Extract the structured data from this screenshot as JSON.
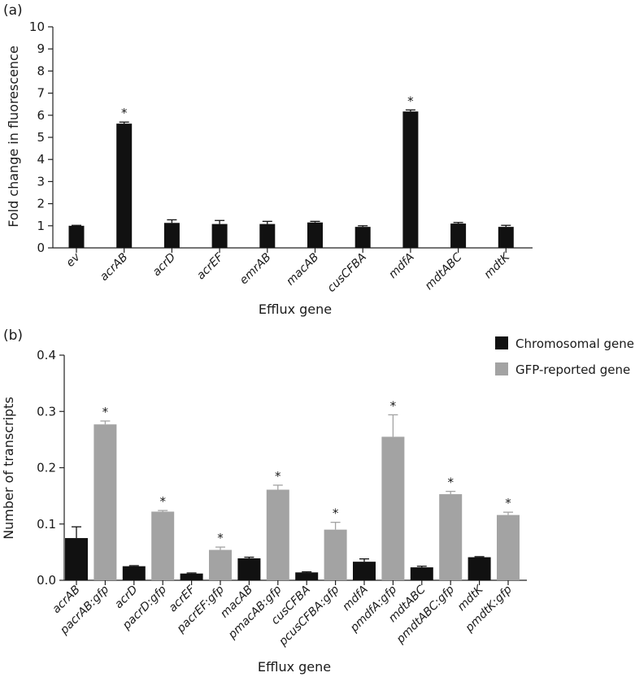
{
  "chart_data": [
    {
      "panel": "(a)",
      "type": "bar",
      "xlabel": "Efflux gene",
      "ylabel": "Fold change in fluorescence",
      "ylim": [
        0,
        10
      ],
      "yticks": [
        "0",
        "1",
        "2",
        "3",
        "4",
        "5",
        "6",
        "7",
        "8",
        "9",
        "10"
      ],
      "categories": [
        "ev",
        "acrAB",
        "acrD",
        "acrEF",
        "emrAB",
        "macAB",
        "cusCFBA",
        "mdfA",
        "mdtABC",
        "mdtK"
      ],
      "values": [
        1.0,
        5.62,
        1.13,
        1.08,
        1.08,
        1.15,
        0.95,
        6.17,
        1.1,
        0.95
      ],
      "errors": [
        0.02,
        0.07,
        0.14,
        0.16,
        0.12,
        0.05,
        0.05,
        0.07,
        0.05,
        0.07
      ],
      "significant": [
        false,
        true,
        false,
        false,
        false,
        false,
        false,
        true,
        false,
        false
      ],
      "significance_marker": "*",
      "color": "#111111"
    },
    {
      "panel": "(b)",
      "type": "bar",
      "xlabel": "Efflux gene",
      "ylabel": "Number of transcripts",
      "ylim": [
        0,
        0.4
      ],
      "yticks": [
        "0.0",
        "0.1",
        "0.2",
        "0.3",
        "0.4"
      ],
      "categories": [
        "acrAB",
        "pacrAB:gfp",
        "acrD",
        "pacrD:gfp",
        "acrEF",
        "pacrEF:gfp",
        "macAB",
        "pmacAB:gfp",
        "cusCFBA",
        "pcusCFBA:gfp",
        "mdfA",
        "pmdfA:gfp",
        "mdtABC",
        "pmdtABC:gfp",
        "mdtK",
        "pmdtK:gfp"
      ],
      "values": [
        0.075,
        0.277,
        0.025,
        0.122,
        0.012,
        0.054,
        0.039,
        0.161,
        0.014,
        0.09,
        0.033,
        0.255,
        0.023,
        0.153,
        0.041,
        0.116
      ],
      "errors": [
        0.02,
        0.006,
        0.001,
        0.002,
        0.001,
        0.005,
        0.002,
        0.008,
        0.001,
        0.013,
        0.005,
        0.039,
        0.002,
        0.005,
        0.001,
        0.005
      ],
      "series_index": [
        0,
        1,
        0,
        1,
        0,
        1,
        0,
        1,
        0,
        1,
        0,
        1,
        0,
        1,
        0,
        1
      ],
      "significant": [
        false,
        true,
        false,
        true,
        false,
        true,
        false,
        true,
        false,
        true,
        false,
        true,
        false,
        true,
        false,
        true
      ],
      "significance_marker": "*",
      "legend": [
        {
          "name": "Chromosomal gene",
          "color": "#111111"
        },
        {
          "name": "GFP-reported gene",
          "color": "#a3a3a3"
        }
      ],
      "legend_position": "top-right"
    }
  ]
}
